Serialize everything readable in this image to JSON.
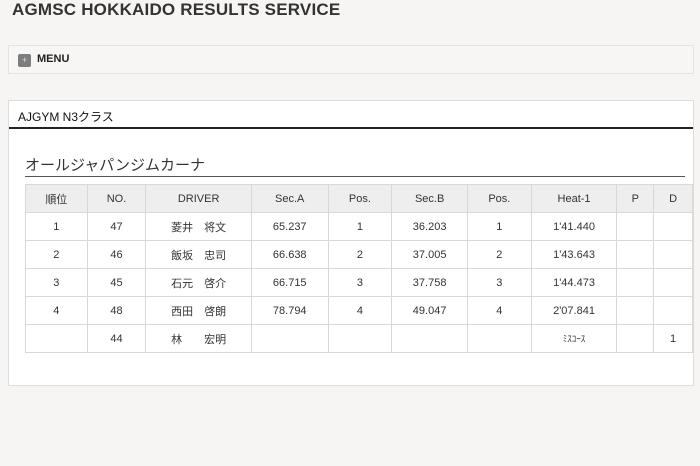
{
  "header": {
    "title": "AGMSC HOKKAIDO RESULTS SERVICE"
  },
  "menu": {
    "label": "MENU",
    "icon": "plus-icon"
  },
  "panel": {
    "title": "AJGYM N3クラス",
    "subtitle": "オールジャパンジムカーナ"
  },
  "table": {
    "columns": [
      "順位",
      "NO.",
      "DRIVER",
      "Sec.A",
      "Pos.",
      "Sec.B",
      "Pos.",
      "Heat-1",
      "P",
      "D"
    ],
    "rows": [
      [
        "1",
        "47",
        "菱井　将文",
        "65.237",
        "1",
        "36.203",
        "1",
        "1'41.440",
        "",
        ""
      ],
      [
        "2",
        "46",
        "飯坂　忠司",
        "66.638",
        "2",
        "37.005",
        "2",
        "1'43.643",
        "",
        ""
      ],
      [
        "3",
        "45",
        "石元　啓介",
        "66.715",
        "3",
        "37.758",
        "3",
        "1'44.473",
        "",
        ""
      ],
      [
        "4",
        "48",
        "西田　啓朗",
        "78.794",
        "4",
        "49.047",
        "4",
        "2'07.841",
        "",
        ""
      ],
      [
        "",
        "44",
        "林　　宏明",
        "",
        "",
        "",
        "",
        "ﾐｽｺｰｽ",
        "",
        "1"
      ]
    ]
  }
}
